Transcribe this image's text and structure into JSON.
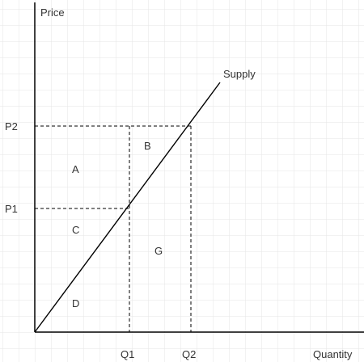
{
  "diagram": {
    "axis_labels": {
      "y": "Price",
      "x": "Quantity"
    },
    "curve_label": "Supply",
    "price_ticks": {
      "p1": "P1",
      "p2": "P2"
    },
    "quantity_ticks": {
      "q1": "Q1",
      "q2": "Q2"
    },
    "regions": {
      "a": "A",
      "b": "B",
      "c": "C",
      "d": "D",
      "g": "G"
    },
    "colors": {
      "grid": "#e6e6e6",
      "axis": "#000000",
      "line": "#000000",
      "text": "#333333"
    }
  }
}
